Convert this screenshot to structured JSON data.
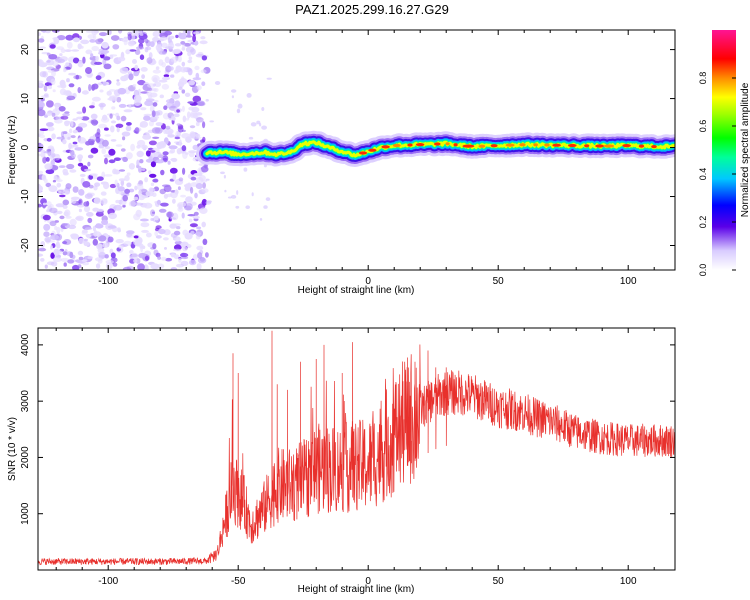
{
  "title": "PAZ1.2025.299.16.27.G29",
  "chart_data": [
    {
      "type": "heatmap",
      "xlabel": "Height of straight line (km)",
      "ylabel": "Frequency (Hz)",
      "xlim": [
        -127,
        118
      ],
      "ylim": [
        -25,
        24
      ],
      "xticks": [
        -100,
        -50,
        0,
        50,
        100
      ],
      "yticks": [
        -20,
        -10,
        0,
        10,
        20
      ],
      "noise_region": [
        -127,
        -62
      ],
      "signal_start": -62,
      "signal_center_line": [
        [
          -62,
          -1.0
        ],
        [
          -55,
          -1.0
        ],
        [
          -50,
          -1.4
        ],
        [
          -45,
          -1.2
        ],
        [
          -40,
          -1.0
        ],
        [
          -35,
          -1.4
        ],
        [
          -30,
          -1.0
        ],
        [
          -25,
          0.8
        ],
        [
          -20,
          1.0
        ],
        [
          -15,
          0.0
        ],
        [
          -10,
          -0.8
        ],
        [
          -5,
          -1.6
        ],
        [
          0,
          -0.8
        ],
        [
          5,
          0.0
        ],
        [
          10,
          0.4
        ],
        [
          20,
          0.6
        ],
        [
          30,
          0.8
        ],
        [
          40,
          0.2
        ],
        [
          50,
          0.4
        ],
        [
          60,
          0.6
        ],
        [
          70,
          0.5
        ],
        [
          80,
          0.4
        ],
        [
          90,
          0.3
        ],
        [
          100,
          0.4
        ],
        [
          110,
          0.2
        ],
        [
          118,
          0.2
        ]
      ],
      "colorbar": {
        "label": "Normalized spectral amplitude",
        "range": [
          0.0,
          1.0
        ],
        "ticks": [
          "0.0",
          "0.2",
          "0.4",
          "0.6",
          "0.8"
        ]
      }
    },
    {
      "type": "line",
      "xlabel": "Height of straight line (km)",
      "ylabel": "SNR (10 * v/v)",
      "xlim": [
        -127,
        118
      ],
      "ylim": [
        0,
        4300
      ],
      "xticks": [
        -100,
        -50,
        0,
        50,
        100
      ],
      "yticks": [
        1000,
        2000,
        3000,
        4000
      ],
      "color": "#e8302c",
      "envelope": [
        [
          -127,
          150
        ],
        [
          -80,
          150
        ],
        [
          -62,
          160
        ],
        [
          -58,
          300
        ],
        [
          -55,
          900
        ],
        [
          -52,
          1500
        ],
        [
          -48,
          1200
        ],
        [
          -45,
          800
        ],
        [
          -40,
          1100
        ],
        [
          -35,
          1500
        ],
        [
          -30,
          1500
        ],
        [
          -25,
          1600
        ],
        [
          -20,
          1800
        ],
        [
          -15,
          1800
        ],
        [
          -10,
          1800
        ],
        [
          -5,
          1850
        ],
        [
          0,
          1850
        ],
        [
          5,
          2100
        ],
        [
          10,
          2400
        ],
        [
          15,
          2650
        ],
        [
          20,
          2850
        ],
        [
          25,
          3050
        ],
        [
          30,
          3150
        ],
        [
          35,
          3150
        ],
        [
          40,
          3100
        ],
        [
          45,
          3000
        ],
        [
          50,
          2900
        ],
        [
          55,
          2850
        ],
        [
          60,
          2800
        ],
        [
          65,
          2700
        ],
        [
          70,
          2650
        ],
        [
          75,
          2550
        ],
        [
          80,
          2450
        ],
        [
          90,
          2350
        ],
        [
          100,
          2300
        ],
        [
          110,
          2300
        ],
        [
          118,
          2300
        ]
      ],
      "spikes": [
        [
          -52,
          3850
        ],
        [
          -50,
          3500
        ],
        [
          -37,
          4250
        ],
        [
          -35,
          3300
        ],
        [
          -31,
          3200
        ],
        [
          -26,
          3700
        ],
        [
          -20,
          3750
        ],
        [
          -17,
          4000
        ],
        [
          -10,
          3500
        ],
        [
          -6,
          4050
        ],
        [
          15,
          3200
        ],
        [
          18,
          3700
        ],
        [
          23,
          3900
        ],
        [
          26,
          3600
        ],
        [
          30,
          3600
        ]
      ]
    }
  ]
}
